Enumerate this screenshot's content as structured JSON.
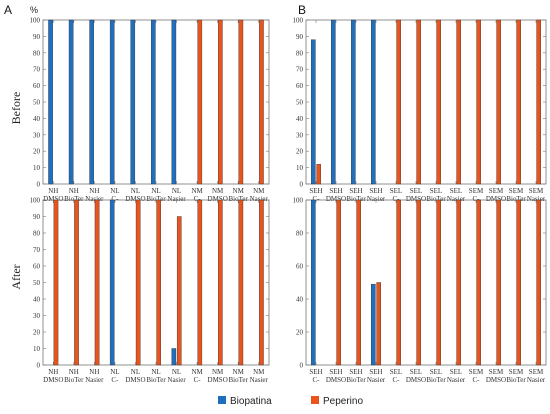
{
  "panel_labels": [
    "A",
    "B"
  ],
  "unit_label": "%",
  "row_labels": [
    "Before",
    "After"
  ],
  "legend": [
    {
      "name": "Biopatina",
      "color": "#1f6fbf"
    },
    {
      "name": "Peperino",
      "color": "#e8541c"
    }
  ],
  "chart_data": [
    {
      "type": "bar",
      "panel": "A",
      "row": "Before",
      "categories": [
        [
          "NH",
          "DMSO"
        ],
        [
          "NH",
          "BioTer"
        ],
        [
          "NH",
          "Nasier"
        ],
        [
          "NL",
          "C-"
        ],
        [
          "NL",
          "DMSO"
        ],
        [
          "NL",
          "BioTer"
        ],
        [
          "NL",
          "Nasier"
        ],
        [
          "NM",
          "C-"
        ],
        [
          "NM",
          "DMSO"
        ],
        [
          "NM",
          "BioTer"
        ],
        [
          "NM",
          "Nasier"
        ]
      ],
      "series": [
        {
          "name": "Biopatina",
          "values": [
            100,
            100,
            100,
            100,
            100,
            100,
            100,
            0,
            0,
            0,
            0
          ]
        },
        {
          "name": "Peperino",
          "values": [
            0,
            0,
            0,
            0,
            0,
            0,
            0,
            100,
            100,
            100,
            100
          ]
        }
      ],
      "ylim": [
        0,
        100
      ],
      "yticks": [
        0,
        10,
        20,
        30,
        40,
        50,
        60,
        70,
        80,
        90,
        100
      ]
    },
    {
      "type": "bar",
      "panel": "B",
      "row": "Before",
      "categories": [
        [
          "SEH",
          "C-"
        ],
        [
          "SEH",
          "DMSO"
        ],
        [
          "SEH",
          "BioTer"
        ],
        [
          "SEH",
          "Nasier"
        ],
        [
          "SEL",
          "C-"
        ],
        [
          "SEL",
          "DMSO"
        ],
        [
          "SEL",
          "BioTer"
        ],
        [
          "SEL",
          "Nasier"
        ],
        [
          "SEM",
          "C-"
        ],
        [
          "SEM",
          "DMSO"
        ],
        [
          "SEM",
          "BioTer"
        ],
        [
          "SEM",
          "Nasier"
        ]
      ],
      "series": [
        {
          "name": "Biopatina",
          "values": [
            88,
            100,
            100,
            100,
            0,
            0,
            0,
            0,
            0,
            0,
            0,
            0
          ]
        },
        {
          "name": "Peperino",
          "values": [
            12,
            0,
            0,
            0,
            100,
            100,
            100,
            100,
            100,
            100,
            100,
            100
          ]
        }
      ],
      "ylim": [
        0,
        100
      ],
      "yticks": [
        0,
        10,
        20,
        30,
        40,
        50,
        60,
        70,
        80,
        90,
        100
      ]
    },
    {
      "type": "bar",
      "panel": "A",
      "row": "After",
      "categories": [
        [
          "NH",
          "DMSO"
        ],
        [
          "NH",
          "BioTer"
        ],
        [
          "NH",
          "Nasier"
        ],
        [
          "NL",
          "C-"
        ],
        [
          "NL",
          "DMSO"
        ],
        [
          "NL",
          "BioTer"
        ],
        [
          "NL",
          "Nasier"
        ],
        [
          "NM",
          "C-"
        ],
        [
          "NM",
          "DMSO"
        ],
        [
          "NM",
          "BioTer"
        ],
        [
          "NM",
          "Nasier"
        ]
      ],
      "series": [
        {
          "name": "Biopatina",
          "values": [
            0,
            0,
            0,
            100,
            0,
            0,
            10,
            0,
            0,
            0,
            0
          ]
        },
        {
          "name": "Peperino",
          "values": [
            100,
            100,
            100,
            0,
            100,
            100,
            90,
            100,
            100,
            100,
            100
          ]
        }
      ],
      "ylim": [
        0,
        100
      ],
      "yticks": [
        0,
        10,
        20,
        30,
        40,
        50,
        60,
        70,
        80,
        90,
        100
      ]
    },
    {
      "type": "bar",
      "panel": "B",
      "row": "After",
      "categories": [
        [
          "SEH",
          "C-"
        ],
        [
          "SEH",
          "DMSO"
        ],
        [
          "SEH",
          "BioTer"
        ],
        [
          "SEH",
          "Nasier"
        ],
        [
          "SEL",
          "C-"
        ],
        [
          "SEL",
          "DMSO"
        ],
        [
          "SEL",
          "BioTer"
        ],
        [
          "SEL",
          "Nasier"
        ],
        [
          "SEM",
          "C-"
        ],
        [
          "SEM",
          "DMSO"
        ],
        [
          "SEM",
          "BioTer"
        ],
        [
          "SEM",
          "Nasier"
        ]
      ],
      "series": [
        {
          "name": "Biopatina",
          "values": [
            100,
            0,
            0,
            49,
            0,
            0,
            0,
            0,
            0,
            0,
            0,
            0
          ]
        },
        {
          "name": "Peperino",
          "values": [
            0,
            100,
            100,
            50,
            100,
            100,
            100,
            100,
            100,
            100,
            100,
            100
          ]
        }
      ],
      "ylim": [
        0,
        100
      ],
      "yticks": [
        0,
        20,
        40,
        60,
        80,
        100
      ]
    }
  ]
}
